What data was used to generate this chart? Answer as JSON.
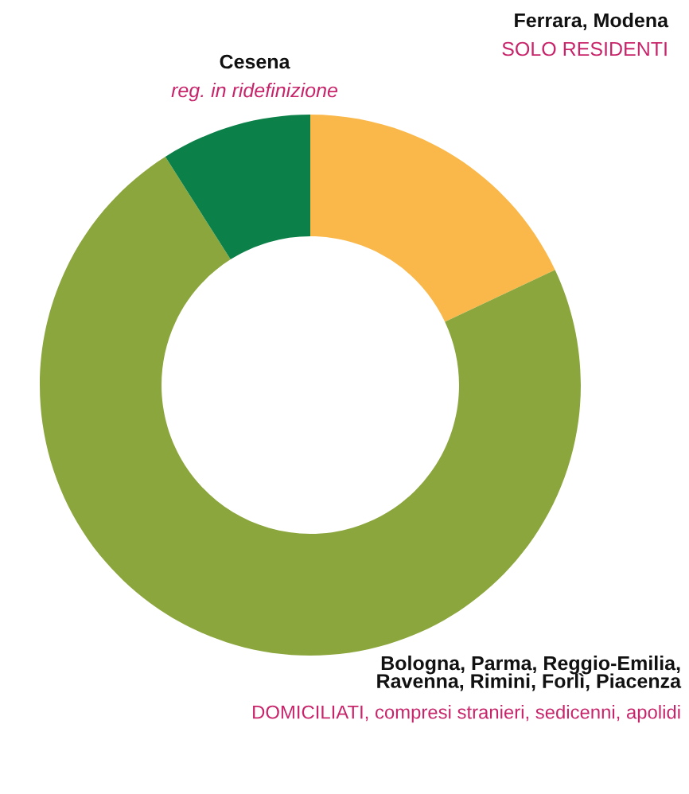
{
  "chart_data": {
    "type": "donut",
    "categories": [
      "Ferrara, Modena",
      "Bologna, Parma, Reggio-Emilia,\nRavenna, Rimini, Forlì, Piacenza",
      "Cesena"
    ],
    "values": [
      18,
      73,
      9
    ],
    "colors": [
      "#fbb84a",
      "#8ba63c",
      "#0b8048"
    ],
    "annotations": [
      "SOLO RESIDENTI",
      "DOMICILIATI, compresi stranieri, sedicenni, apolidi",
      "reg. in ridefinizione"
    ]
  }
}
